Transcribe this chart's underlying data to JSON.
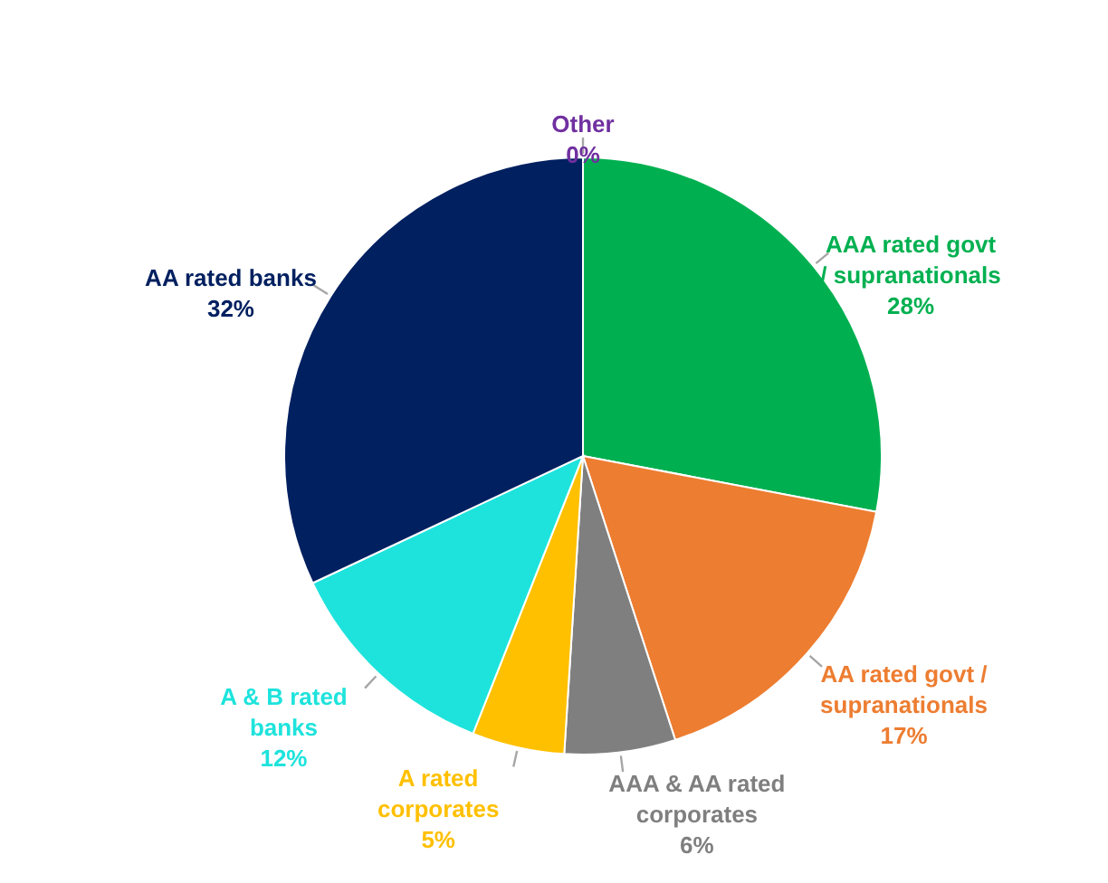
{
  "chart_data": {
    "type": "pie",
    "categories": [
      "AAA rated govt\n/ supranationals",
      "AA rated govt /\nsupranationals",
      "AAA & AA rated\ncorporates",
      "A rated\ncorporates",
      "A & B rated\nbanks",
      "AA rated banks",
      "Other"
    ],
    "values": [
      28,
      17,
      6,
      5,
      12,
      32,
      0
    ],
    "colors": [
      "#00b050",
      "#ed7d31",
      "#7f7f7f",
      "#ffc000",
      "#1ee3dc",
      "#002060",
      "#7030a0"
    ],
    "value_labels": [
      "28%",
      "17%",
      "6%",
      "5%",
      "12%",
      "32%",
      "0%"
    ]
  }
}
